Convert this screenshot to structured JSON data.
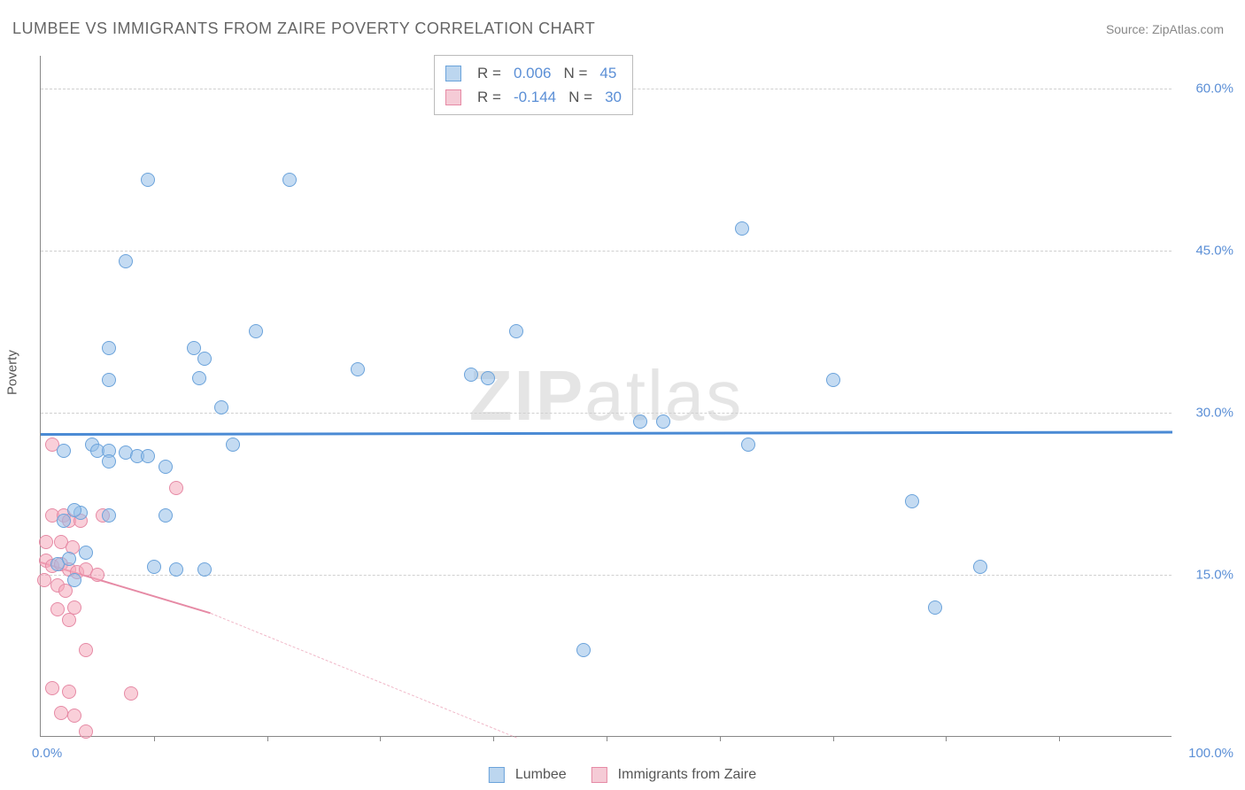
{
  "title": "LUMBEE VS IMMIGRANTS FROM ZAIRE POVERTY CORRELATION CHART",
  "source": "Source: ZipAtlas.com",
  "watermark_bold": "ZIP",
  "watermark_light": "atlas",
  "ylabel": "Poverty",
  "axes": {
    "xmin": 0,
    "xmax": 100,
    "ymin": 0,
    "ymax": 63,
    "yticks": [
      15,
      30,
      45,
      60
    ],
    "ytick_labels": [
      "15.0%",
      "30.0%",
      "45.0%",
      "60.0%"
    ],
    "xticks_minor": [
      10,
      20,
      30,
      40,
      50,
      60,
      70,
      80,
      90
    ],
    "xlabels": {
      "min": "0.0%",
      "max": "100.0%"
    }
  },
  "colors": {
    "blue_fill": "rgba(147,190,231,0.55)",
    "blue_stroke": "#6ba3db",
    "blue_line": "#4a8ad4",
    "pink_fill": "rgba(244,167,185,0.55)",
    "pink_stroke": "#e68aa5",
    "pink_line": "#e68aa5",
    "tick_text": "#5b8fd6",
    "grid": "#d0d0d0"
  },
  "stats": [
    {
      "color": "blue",
      "r_label": "R =",
      "r": "0.006",
      "n_label": "N =",
      "n": "45"
    },
    {
      "color": "pink",
      "r_label": "R =",
      "r": "-0.144",
      "n_label": "N =",
      "n": "30"
    }
  ],
  "legend": [
    {
      "color": "blue",
      "label": "Lumbee"
    },
    {
      "color": "pink",
      "label": "Immigrants from Zaire"
    }
  ],
  "series_blue": {
    "trend": {
      "x1": 0,
      "y1": 28.1,
      "x2": 100,
      "y2": 28.3
    },
    "points": [
      [
        9.5,
        51.5
      ],
      [
        22,
        51.5
      ],
      [
        62,
        47
      ],
      [
        7.5,
        44
      ],
      [
        6,
        36
      ],
      [
        13.5,
        36
      ],
      [
        14.5,
        35
      ],
      [
        19,
        37.5
      ],
      [
        42,
        37.5
      ],
      [
        6,
        33
      ],
      [
        14,
        33.2
      ],
      [
        28,
        34
      ],
      [
        38,
        33.5
      ],
      [
        39.5,
        33.2
      ],
      [
        70,
        33
      ],
      [
        16,
        30.5
      ],
      [
        53,
        29.2
      ],
      [
        55,
        29.2
      ],
      [
        62.5,
        27
      ],
      [
        2,
        26.5
      ],
      [
        4.5,
        27
      ],
      [
        5,
        26.5
      ],
      [
        6,
        26.5
      ],
      [
        7.5,
        26.3
      ],
      [
        8.5,
        26
      ],
      [
        9.5,
        26
      ],
      [
        17,
        27
      ],
      [
        11,
        25
      ],
      [
        6,
        25.5
      ],
      [
        77,
        21.8
      ],
      [
        3.5,
        20.7
      ],
      [
        6,
        20.5
      ],
      [
        11,
        20.5
      ],
      [
        4,
        17
      ],
      [
        10,
        15.7
      ],
      [
        12,
        15.5
      ],
      [
        14.5,
        15.5
      ],
      [
        83,
        15.7
      ],
      [
        79,
        12
      ],
      [
        48,
        8
      ],
      [
        3,
        14.5
      ],
      [
        1.5,
        16
      ],
      [
        2.5,
        16.5
      ],
      [
        2,
        20
      ],
      [
        3,
        21
      ]
    ]
  },
  "series_pink": {
    "trend_solid": {
      "x1": 0,
      "y1": 16.2,
      "x2": 15,
      "y2": 11.5
    },
    "trend_dashed": {
      "x1": 15,
      "y1": 11.5,
      "x2": 42,
      "y2": 0
    },
    "points": [
      [
        1,
        27
      ],
      [
        12,
        23
      ],
      [
        1,
        20.5
      ],
      [
        2,
        20.5
      ],
      [
        5.5,
        20.5
      ],
      [
        2.5,
        20
      ],
      [
        3.5,
        20
      ],
      [
        0.5,
        18
      ],
      [
        1.8,
        18
      ],
      [
        2.8,
        17.5
      ],
      [
        0.5,
        16.3
      ],
      [
        1,
        15.8
      ],
      [
        1.8,
        16
      ],
      [
        2.5,
        15.5
      ],
      [
        3.2,
        15.2
      ],
      [
        4,
        15.5
      ],
      [
        5,
        15
      ],
      [
        0.3,
        14.5
      ],
      [
        1.5,
        14
      ],
      [
        2.2,
        13.5
      ],
      [
        1.5,
        11.8
      ],
      [
        3,
        12
      ],
      [
        2.5,
        10.8
      ],
      [
        4,
        8
      ],
      [
        1,
        4.5
      ],
      [
        2.5,
        4.2
      ],
      [
        8,
        4
      ],
      [
        1.8,
        2.2
      ],
      [
        3,
        2
      ],
      [
        4,
        0.5
      ]
    ]
  }
}
